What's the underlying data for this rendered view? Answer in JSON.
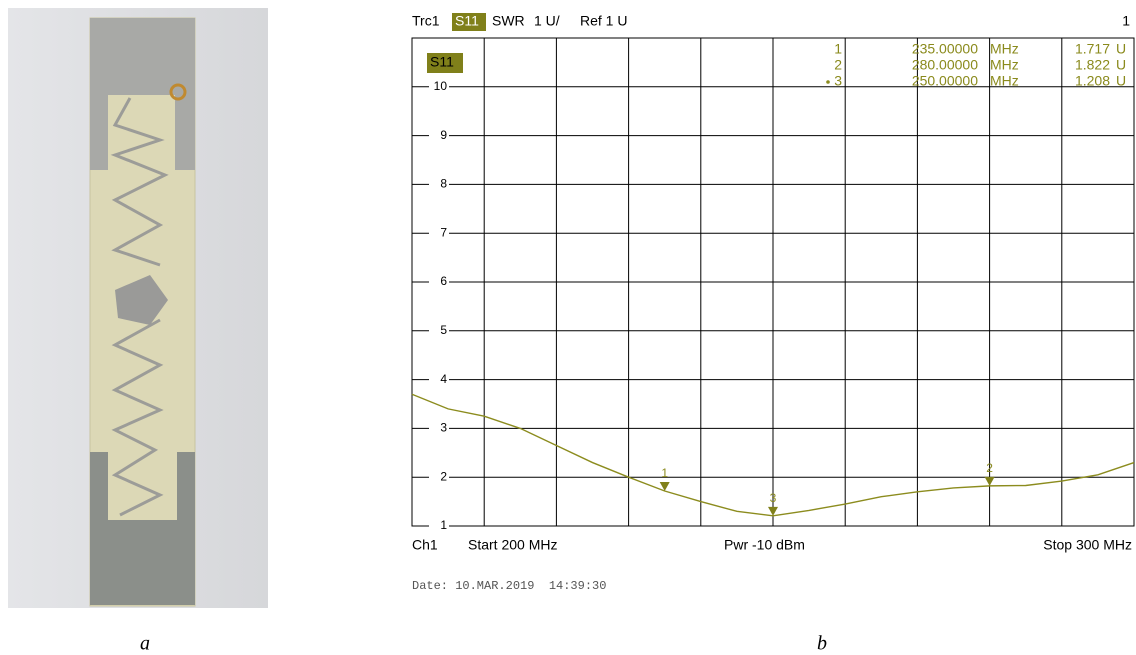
{
  "figure": {
    "left_caption": "a",
    "right_caption": "b"
  },
  "chart_data": {
    "type": "line",
    "header": {
      "trace": "Trc1",
      "format": "SWR",
      "scale": "1 U/",
      "ref": "Ref 1 U",
      "channel_number": "1"
    },
    "x": [
      200,
      205,
      210,
      215,
      220,
      225,
      230,
      235,
      240,
      245,
      250,
      255,
      260,
      265,
      270,
      275,
      280,
      285,
      290,
      295,
      300
    ],
    "series": [
      {
        "name": "S11",
        "color": "#8c8c1e",
        "values": [
          3.7,
          3.4,
          3.25,
          3.0,
          2.65,
          2.3,
          2.0,
          1.717,
          1.5,
          1.3,
          1.208,
          1.32,
          1.45,
          1.6,
          1.7,
          1.78,
          1.822,
          1.83,
          1.92,
          2.05,
          2.3
        ]
      }
    ],
    "xlim": [
      200,
      300
    ],
    "xticks": [
      200,
      210,
      220,
      230,
      240,
      250,
      260,
      270,
      280,
      290,
      300
    ],
    "ylim": [
      1,
      11
    ],
    "yticks": [
      1,
      2,
      3,
      4,
      5,
      6,
      7,
      8,
      9,
      10
    ],
    "grid": true,
    "markers": [
      {
        "label": "1",
        "freq": 235,
        "freq_label": "235.00000",
        "freq_unit": "MHz",
        "value": 1.717,
        "value_label": "1.717",
        "value_unit": "U"
      },
      {
        "label": "2",
        "freq": 280,
        "freq_label": "280.00000",
        "freq_unit": "MHz",
        "value": 1.822,
        "value_label": "1.822",
        "value_unit": "U"
      },
      {
        "label": "3",
        "freq": 250,
        "freq_label": "250.00000",
        "freq_unit": "MHz",
        "value": 1.208,
        "value_label": "1.208",
        "value_unit": "U"
      }
    ],
    "footer": {
      "channel": "Ch1",
      "start": "Start 200 MHz",
      "power": "Pwr -10 dBm",
      "stop": "Stop 300 MHz"
    },
    "date": "Date: 10.MAR.2019  14:39:30"
  }
}
